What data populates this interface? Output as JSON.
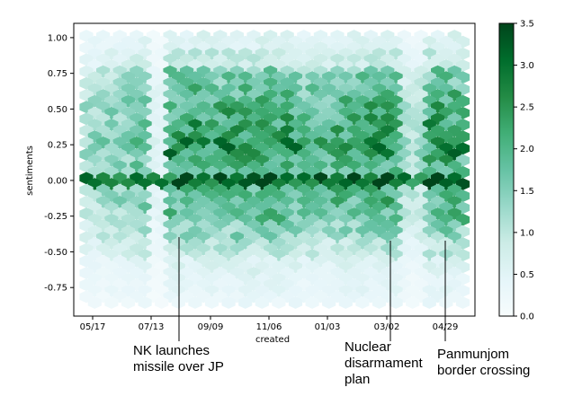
{
  "chart_data": {
    "type": "heatmap",
    "subtype": "hexbin",
    "xlabel": "created",
    "ylabel": "sentiments",
    "x_ticks": [
      "05/17",
      "07/13",
      "09/09",
      "11/06",
      "01/03",
      "03/02",
      "04/29"
    ],
    "y_ticks": [
      "1.00",
      "0.75",
      "0.50",
      "0.25",
      "0.00",
      "-0.25",
      "-0.50",
      "-0.75"
    ],
    "y_tick_values": [
      1.0,
      0.75,
      0.5,
      0.25,
      0.0,
      -0.25,
      -0.5,
      -0.75
    ],
    "ylim": [
      -0.95,
      1.1
    ],
    "colorbar": {
      "range": [
        0.0,
        3.5
      ],
      "ticks": [
        "0.0",
        "0.5",
        "1.0",
        "1.5",
        "2.0",
        "2.5",
        "3.0",
        "3.5"
      ],
      "tick_values": [
        0.0,
        0.5,
        1.0,
        1.5,
        2.0,
        2.5,
        3.0,
        3.5
      ],
      "colors": [
        "#f7fcfd",
        "#e5f5f9",
        "#ccece6",
        "#99d8c9",
        "#66c2a4",
        "#41ae76",
        "#238b45",
        "#006d2c",
        "#00441b"
      ]
    },
    "annotations": [
      {
        "text": "NK launches\nmissile over JP",
        "x_date": "08/29"
      },
      {
        "text": "Nuclear\ndisarmament\nplan",
        "x_date": "03/02"
      },
      {
        "text": "Panmunjom\nborder crossing",
        "x_date": "04/29"
      }
    ],
    "row_intensity": [
      {
        "y": 1.0,
        "level": 0.6
      },
      {
        "y": 0.85,
        "level": 0.9
      },
      {
        "y": 0.72,
        "level": 1.6
      },
      {
        "y": 0.6,
        "level": 1.9
      },
      {
        "y": 0.47,
        "level": 2.1
      },
      {
        "y": 0.35,
        "level": 2.3
      },
      {
        "y": 0.22,
        "level": 2.5
      },
      {
        "y": 0.1,
        "level": 2.0
      },
      {
        "y": 0.0,
        "level": 3.2
      },
      {
        "y": -0.1,
        "level": 1.9
      },
      {
        "y": -0.22,
        "level": 1.8
      },
      {
        "y": -0.35,
        "level": 1.4
      },
      {
        "y": -0.47,
        "level": 1.0
      },
      {
        "y": -0.6,
        "level": 0.6
      },
      {
        "y": -0.72,
        "level": 0.45
      },
      {
        "y": -0.85,
        "level": 0.35
      }
    ]
  }
}
